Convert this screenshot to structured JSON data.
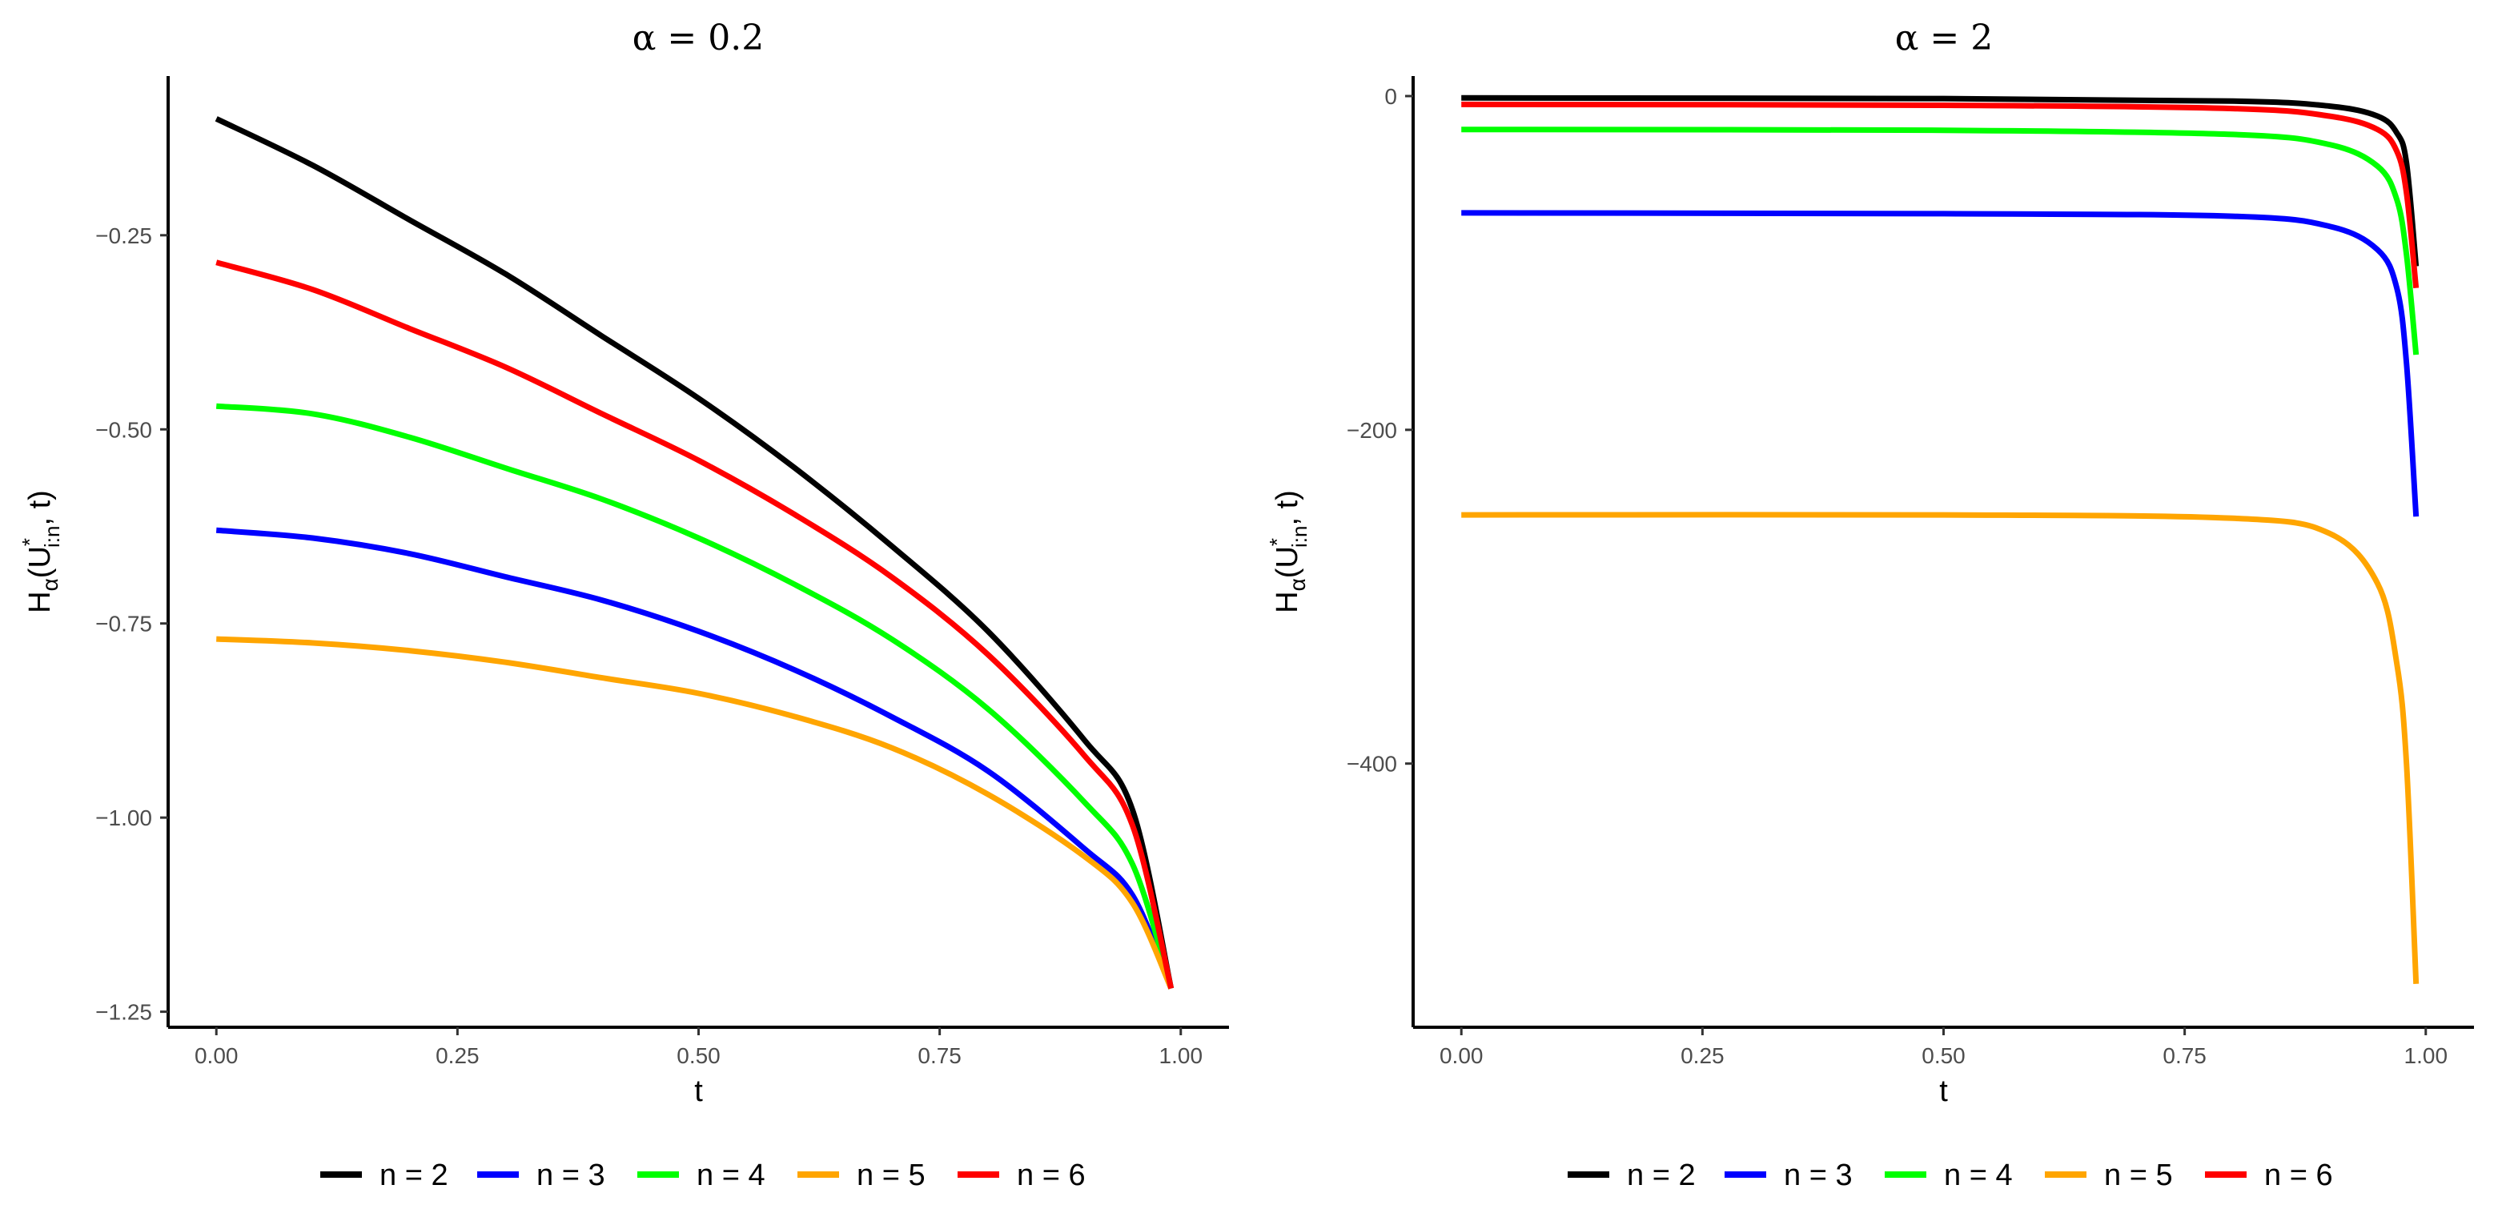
{
  "figure": {
    "panels": [
      {
        "title": "α = 0.2",
        "xlabel": "t",
        "ylabel": "Hα(U*i:n, t)",
        "ylabel_main": "H",
        "ylabel_sub": "α",
        "ylabel_open": "(U",
        "ylabel_sup": "*",
        "ylabel_sub2": "i:n",
        "ylabel_close": ", t)"
      },
      {
        "title": "α = 2",
        "xlabel": "t",
        "ylabel": "Hα(U*i:n, t)",
        "ylabel_main": "H",
        "ylabel_sub": "α",
        "ylabel_open": "(U",
        "ylabel_sup": "*",
        "ylabel_sub2": "i:n",
        "ylabel_close": ", t)"
      }
    ]
  },
  "chart_data": [
    {
      "type": "line",
      "title": "α = 0.2",
      "xlabel": "t",
      "ylabel": "Hα(U*i:n, t)",
      "xlim": [
        -0.05,
        1.05
      ],
      "ylim": [
        -1.27,
        -0.045
      ],
      "xticks": [
        0,
        0.25,
        0.5,
        0.75,
        1.0
      ],
      "xtick_labels": [
        "0.00",
        "0.25",
        "0.50",
        "0.75",
        "1.00"
      ],
      "yticks": [
        -0.25,
        -0.5,
        -0.75,
        -1.0,
        -1.25
      ],
      "ytick_labels": [
        "−0.25",
        "−0.50",
        "−0.75",
        "−1.00",
        "−1.25"
      ],
      "x": [
        0,
        0.1,
        0.2,
        0.3,
        0.4,
        0.5,
        0.6,
        0.7,
        0.8,
        0.9,
        0.95,
        0.99
      ],
      "series": [
        {
          "name": "n = 2",
          "color": "#000000",
          "values": [
            -0.1,
            -0.16,
            -0.23,
            -0.3,
            -0.38,
            -0.46,
            -0.55,
            -0.65,
            -0.76,
            -0.9,
            -0.99,
            -1.22
          ]
        },
        {
          "name": "n = 3",
          "color": "#0000ff",
          "values": [
            -0.63,
            -0.64,
            -0.66,
            -0.69,
            -0.72,
            -0.76,
            -0.81,
            -0.87,
            -0.94,
            -1.04,
            -1.1,
            -1.22
          ]
        },
        {
          "name": "n = 4",
          "color": "#00ff00",
          "values": [
            -0.47,
            -0.48,
            -0.51,
            -0.55,
            -0.59,
            -0.64,
            -0.7,
            -0.77,
            -0.86,
            -0.98,
            -1.06,
            -1.22
          ]
        },
        {
          "name": "n = 5",
          "color": "#ffa500",
          "values": [
            -0.77,
            -0.775,
            -0.785,
            -0.8,
            -0.82,
            -0.84,
            -0.87,
            -0.91,
            -0.97,
            -1.05,
            -1.11,
            -1.22
          ]
        },
        {
          "name": "n = 6",
          "color": "#ff0000",
          "values": [
            -0.285,
            -0.32,
            -0.37,
            -0.42,
            -0.48,
            -0.54,
            -0.61,
            -0.69,
            -0.79,
            -0.92,
            -1.01,
            -1.22
          ]
        }
      ],
      "legend_position": "bottom"
    },
    {
      "type": "line",
      "title": "α = 2",
      "xlabel": "t",
      "ylabel": "Hα(U*i:n, t)",
      "xlim": [
        -0.05,
        1.05
      ],
      "ylim": [
        -558,
        12
      ],
      "xticks": [
        0,
        0.25,
        0.5,
        0.75,
        1.0
      ],
      "xtick_labels": [
        "0.00",
        "0.25",
        "0.50",
        "0.75",
        "1.00"
      ],
      "yticks": [
        0,
        -200,
        -400
      ],
      "ytick_labels": [
        "0",
        "−200",
        "−400"
      ],
      "x": [
        0,
        0.5,
        0.8,
        0.9,
        0.95,
        0.97,
        0.98,
        0.99
      ],
      "series": [
        {
          "name": "n = 2",
          "color": "#000000",
          "values": [
            -1.1,
            -1.5,
            -3,
            -6,
            -12,
            -22,
            -40,
            -102
          ]
        },
        {
          "name": "n = 3",
          "color": "#0000ff",
          "values": [
            -70,
            -70.5,
            -72,
            -78,
            -92,
            -115,
            -160,
            -252
          ]
        },
        {
          "name": "n = 4",
          "color": "#00ff00",
          "values": [
            -20,
            -20.5,
            -23,
            -29,
            -42,
            -62,
            -95,
            -155
          ]
        },
        {
          "name": "n = 5",
          "color": "#ffa500",
          "values": [
            -251,
            -251,
            -253,
            -262,
            -292,
            -340,
            -400,
            -532
          ]
        },
        {
          "name": "n = 6",
          "color": "#ff0000",
          "values": [
            -5,
            -5.5,
            -7.5,
            -12,
            -20,
            -33,
            -58,
            -115
          ]
        }
      ],
      "legend_position": "bottom"
    }
  ]
}
